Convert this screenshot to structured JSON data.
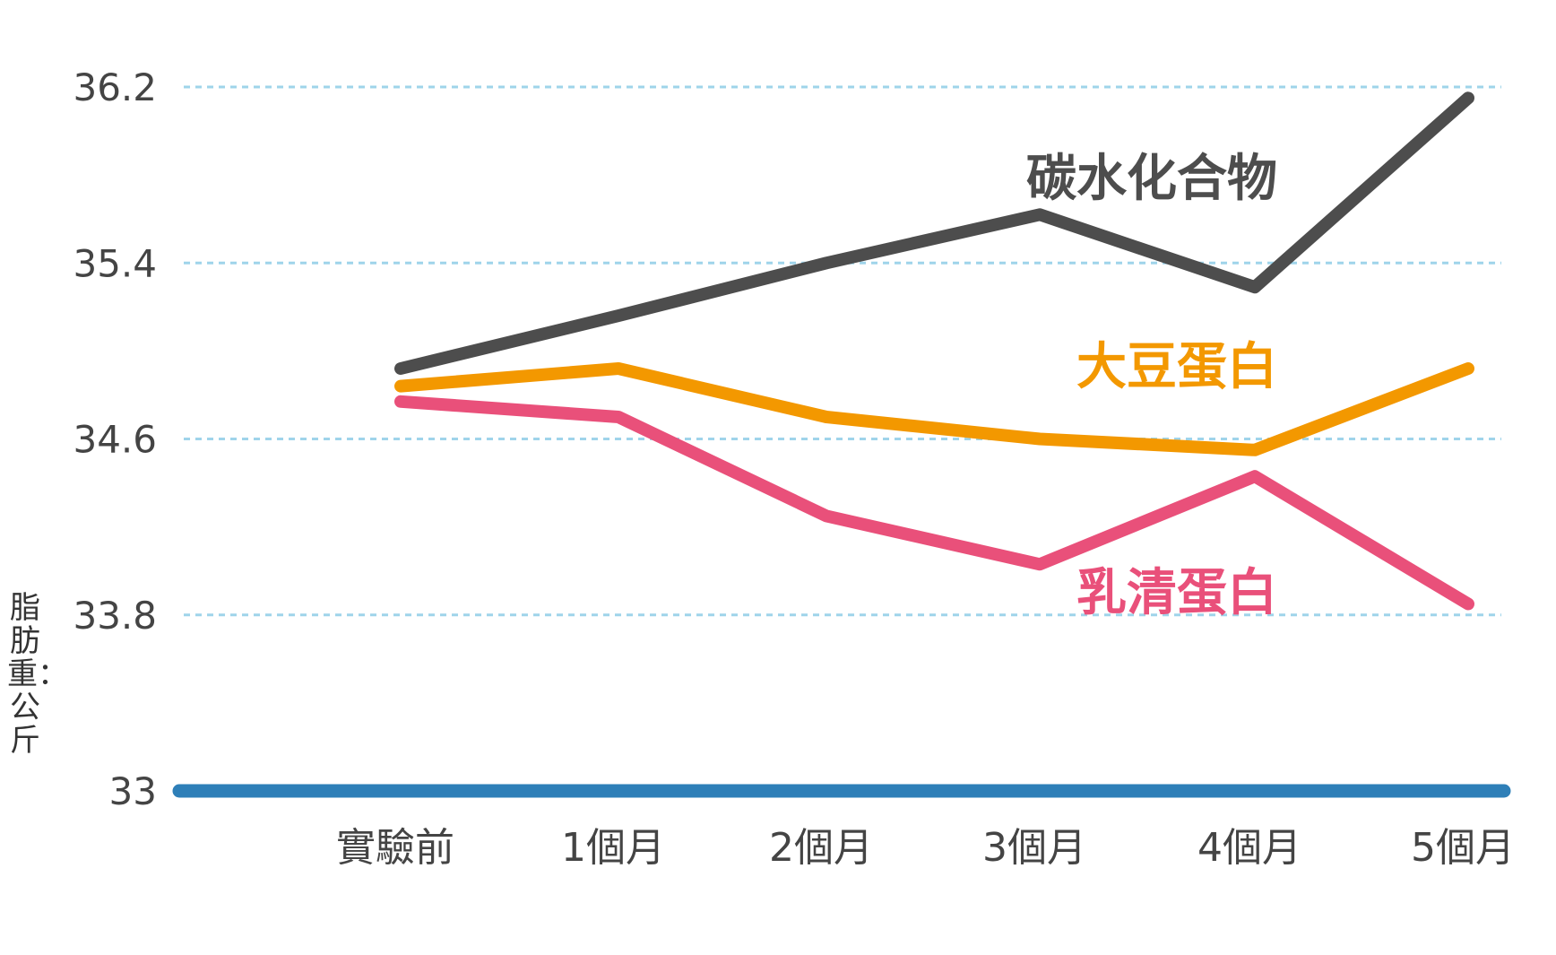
{
  "chart_data": {
    "type": "line",
    "categories": [
      "實驗前",
      "1個月",
      "2個月",
      "3個月",
      "4個月",
      "5個月"
    ],
    "y_ticks": [
      "33",
      "33.8",
      "34.6",
      "35.4",
      "36.2"
    ],
    "ylim": [
      33,
      36.2
    ],
    "ylabel": "脂肪重：公斤",
    "grid": "horizontal dotted",
    "series": [
      {
        "name": "碳水化合物",
        "color": "#4d4d4d",
        "values": [
          34.92,
          35.16,
          35.4,
          35.62,
          35.29,
          36.15
        ]
      },
      {
        "name": "大豆蛋白",
        "color": "#f39800",
        "values": [
          34.84,
          34.92,
          34.7,
          34.6,
          34.55,
          34.92
        ]
      },
      {
        "name": "乳清蛋白",
        "color": "#e9507a",
        "values": [
          34.77,
          34.7,
          34.25,
          34.03,
          34.43,
          33.85
        ]
      }
    ],
    "baseline_color": "#2e7fb8",
    "grid_color": "#9fd4ea"
  }
}
